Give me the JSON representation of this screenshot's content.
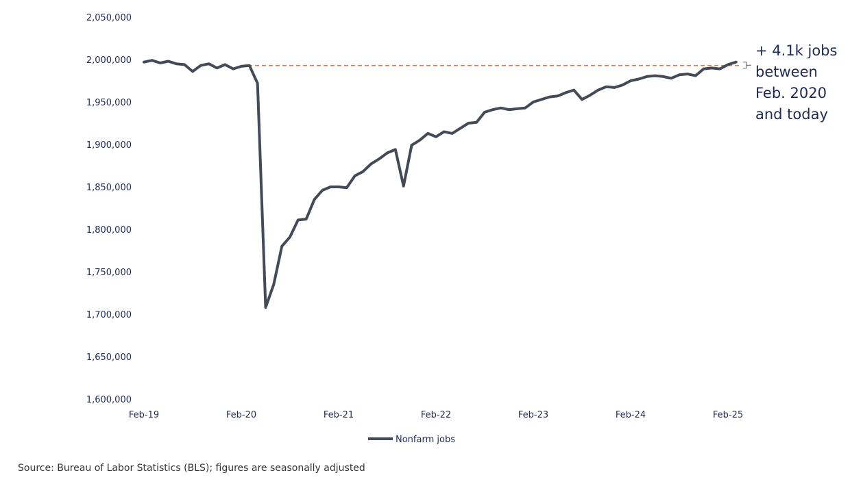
{
  "chart_data": {
    "type": "line",
    "title": "",
    "xlabel": "",
    "ylabel": "",
    "ylim": [
      1600000,
      2050000
    ],
    "yticks": [
      "2,050,000",
      "2,000,000",
      "1,950,000",
      "1,900,000",
      "1,850,000",
      "1,800,000",
      "1,750,000",
      "1,700,000",
      "1,650,000",
      "1,600,000"
    ],
    "xticks": [
      "Feb-19",
      "Feb-20",
      "Feb-21",
      "Feb-22",
      "Feb-23",
      "Feb-24",
      "Feb-25"
    ],
    "x_start": "Feb-19",
    "x_end": "Feb-25",
    "grid": false,
    "legend_position": "bottom",
    "series": [
      {
        "name": "Nonfarm jobs",
        "color": "#454a57",
        "values": [
          1997000,
          1999000,
          1996000,
          1998000,
          1995000,
          1994000,
          1986000,
          1993000,
          1995000,
          1990000,
          1994000,
          1989000,
          1992000,
          1993000,
          1972000,
          1708000,
          1735000,
          1780000,
          1791000,
          1811000,
          1812000,
          1835000,
          1846000,
          1850000,
          1850000,
          1849000,
          1863000,
          1868000,
          1877000,
          1883000,
          1890000,
          1894000,
          1851000,
          1899000,
          1905000,
          1913000,
          1909000,
          1915000,
          1913000,
          1919000,
          1925000,
          1926000,
          1938000,
          1941000,
          1943000,
          1941000,
          1942000,
          1943000,
          1950000,
          1953000,
          1956000,
          1957000,
          1961000,
          1964000,
          1953000,
          1958000,
          1964000,
          1968000,
          1967000,
          1970000,
          1975000,
          1977000,
          1980000,
          1981000,
          1980000,
          1978000,
          1982000,
          1983000,
          1981000,
          1989000,
          1990000,
          1989000,
          1994000,
          1997000
        ]
      }
    ],
    "reference_line": {
      "value": 1993000,
      "color": "#e07b39",
      "style": "dashed"
    },
    "annotation": [
      "+ 4.1k jobs",
      "between",
      "Feb. 2020",
      "and today"
    ]
  },
  "source": "Source: Bureau of Labor Statistics (BLS); figures are seasonally adjusted"
}
